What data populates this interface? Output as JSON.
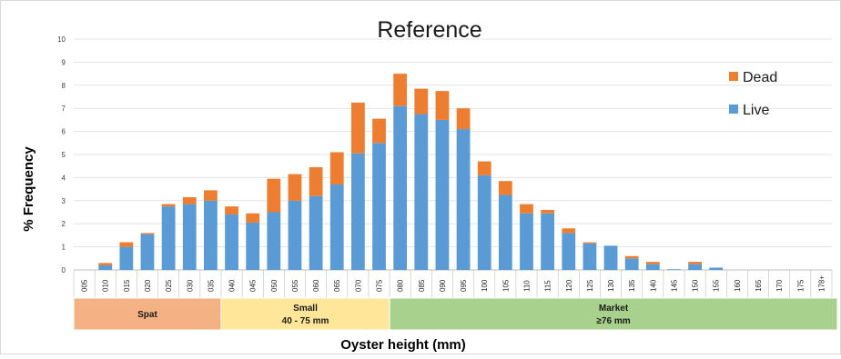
{
  "chart_data": {
    "type": "bar",
    "stacked": true,
    "title": "Reference",
    "xlabel": "Oyster height (mm)",
    "ylabel": "% Frequency",
    "ylim": [
      0,
      10
    ],
    "yticks": [
      0,
      1,
      2,
      3,
      4,
      5,
      6,
      7,
      8,
      9,
      10
    ],
    "grid": true,
    "legend_position": "top-right",
    "categories": [
      "005",
      "010",
      "015",
      "020",
      "025",
      "030",
      "035",
      "040",
      "045",
      "050",
      "055",
      "060",
      "065",
      "070",
      "075",
      "080",
      "085",
      "090",
      "095",
      "100",
      "105",
      "110",
      "115",
      "120",
      "125",
      "130",
      "135",
      "140",
      "145",
      "150",
      "155",
      "160",
      "165",
      "170",
      "175",
      "178+"
    ],
    "series": [
      {
        "name": "Live",
        "color": "#5b9bd5",
        "values": [
          0,
          0.2,
          1.0,
          1.55,
          2.75,
          2.85,
          3.0,
          2.4,
          2.05,
          2.5,
          3.0,
          3.2,
          3.7,
          5.05,
          5.5,
          7.1,
          6.75,
          6.5,
          6.1,
          4.1,
          3.25,
          2.45,
          2.45,
          1.6,
          1.15,
          1.05,
          0.5,
          0.25,
          0.03,
          0.25,
          0.1,
          0,
          0,
          0,
          0,
          0
        ]
      },
      {
        "name": "Dead",
        "color": "#ed7d31",
        "values": [
          0,
          0.1,
          0.2,
          0.05,
          0.1,
          0.3,
          0.45,
          0.35,
          0.4,
          1.45,
          1.15,
          1.25,
          1.4,
          2.2,
          1.05,
          1.4,
          1.1,
          1.25,
          0.9,
          0.6,
          0.6,
          0.4,
          0.15,
          0.2,
          0.05,
          0.0,
          0.1,
          0.1,
          0.0,
          0.1,
          0.0,
          0,
          0,
          0,
          0,
          0
        ]
      }
    ],
    "size_classes": [
      {
        "name": "Spat",
        "range": "",
        "from": "005",
        "to": "035",
        "color": "#f4b183"
      },
      {
        "name": "Small",
        "range": "40 - 75 mm",
        "from": "040",
        "to": "075",
        "color": "#ffe699"
      },
      {
        "name": "Market",
        "range": "≥76 mm",
        "from": "080",
        "to": "178+",
        "color": "#a9d18e"
      }
    ]
  }
}
